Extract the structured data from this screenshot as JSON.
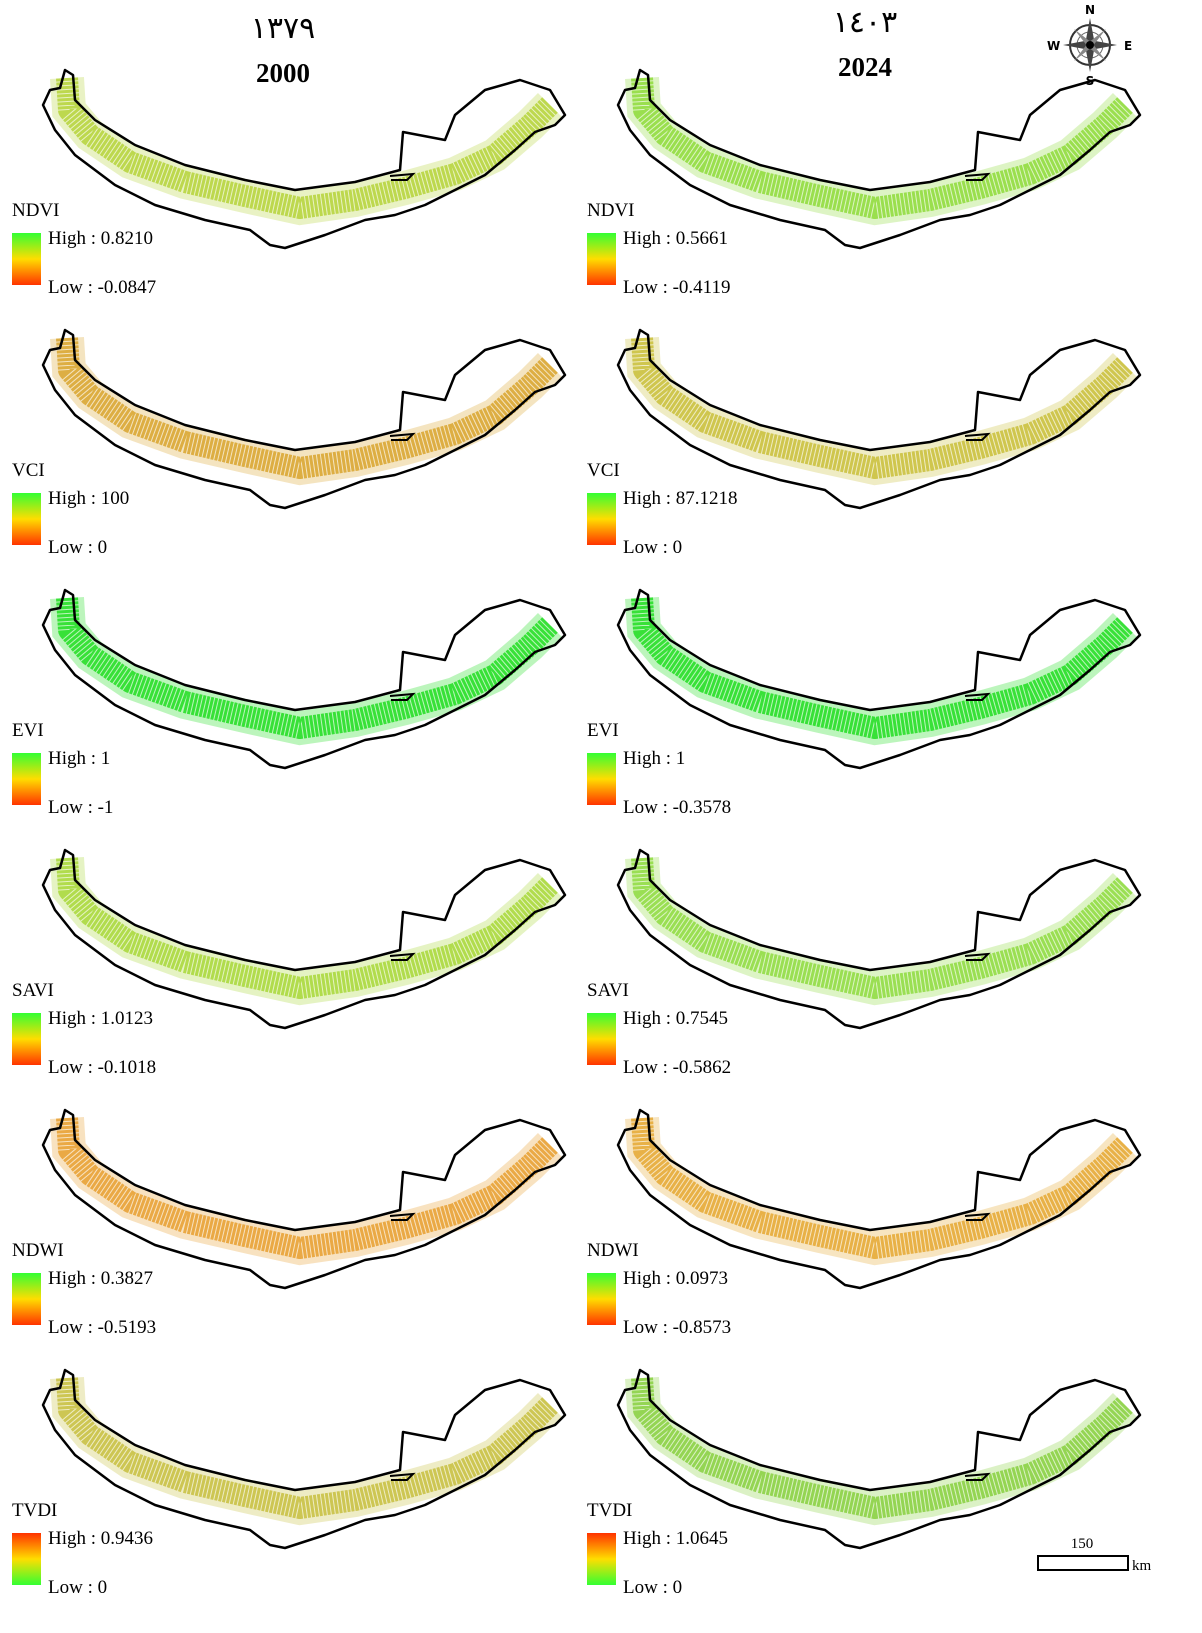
{
  "header": {
    "left": {
      "persian": "١٣٧٩",
      "year": "2000"
    },
    "right": {
      "persian": "١٤٠٣",
      "year": "2024"
    }
  },
  "compass": {
    "n": "N",
    "s": "S",
    "e": "E",
    "w": "W"
  },
  "scale_bar": {
    "value": "150",
    "unit": "km"
  },
  "panels": [
    {
      "index": "NDVI",
      "high": "High : 0.8210",
      "low": "Low : -0.0847",
      "fill_color": "#b5d43a",
      "legend_top": "#33ff33",
      "legend_bottom": "#ff3300"
    },
    {
      "index": "NDVI",
      "high": "High : 0.5661",
      "low": "Low : -0.4119",
      "fill_color": "#8fdc3a",
      "legend_top": "#33ff33",
      "legend_bottom": "#ff3300"
    },
    {
      "index": "VCI",
      "high": "High : 100",
      "low": "Low : 0",
      "fill_color": "#d9a52e",
      "legend_top": "#33ff33",
      "legend_bottom": "#ff3300"
    },
    {
      "index": "VCI",
      "high": "High : 87.1218",
      "low": "Low : 0",
      "fill_color": "#c9c03a",
      "legend_top": "#33ff33",
      "legend_bottom": "#ff3300"
    },
    {
      "index": "EVI",
      "high": "High : 1",
      "low": "Low : -1",
      "fill_color": "#22dd22",
      "legend_top": "#33ff33",
      "legend_bottom": "#ff3300"
    },
    {
      "index": "EVI",
      "high": "High : 1",
      "low": "Low : -0.3578",
      "fill_color": "#22dd22",
      "legend_top": "#33ff33",
      "legend_bottom": "#ff3300"
    },
    {
      "index": "SAVI",
      "high": "High : 1.0123",
      "low": "Low : -0.1018",
      "fill_color": "#a8d838",
      "legend_top": "#33ff33",
      "legend_bottom": "#ff3300"
    },
    {
      "index": "SAVI",
      "high": "High : 0.7545",
      "low": "Low : -0.5862",
      "fill_color": "#8fdc40",
      "legend_top": "#33ff33",
      "legend_bottom": "#ff3300"
    },
    {
      "index": "NDWI",
      "high": "High : 0.3827",
      "low": "Low : -0.5193",
      "fill_color": "#e8a030",
      "legend_top": "#33ff33",
      "legend_bottom": "#ff3300"
    },
    {
      "index": "NDWI",
      "high": "High : 0.0973",
      "low": "Low : -0.8573",
      "fill_color": "#e6a832",
      "legend_top": "#33ff33",
      "legend_bottom": "#ff3300"
    },
    {
      "index": "TVDI",
      "high": "High : 0.9436",
      "low": "Low : 0",
      "fill_color": "#c8c040",
      "legend_top": "#ff3300",
      "legend_bottom": "#33ff33"
    },
    {
      "index": "TVDI",
      "high": "High : 1.0645",
      "low": "Low : 0",
      "fill_color": "#88d040",
      "legend_top": "#ff3300",
      "legend_bottom": "#33ff33"
    }
  ]
}
